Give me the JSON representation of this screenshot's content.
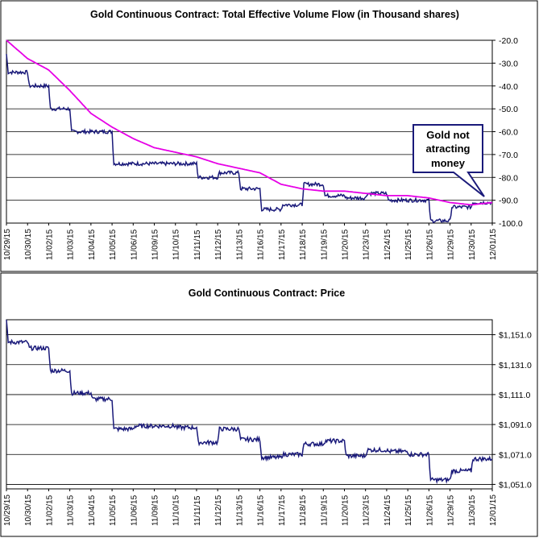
{
  "chart_data": [
    {
      "type": "line",
      "title": "Gold Continuous Contract: Total Effective Volume Flow (in Thousand shares)",
      "xlabel": "",
      "ylabel": "",
      "ylim": [
        -100,
        -20
      ],
      "yticks": [
        "-20.0",
        "-30.0",
        "-40.0",
        "-50.0",
        "-60.0",
        "-70.0",
        "-80.0",
        "-90.0",
        "-100.0"
      ],
      "categories": [
        "10/29/15",
        "10/30/15",
        "11/02/15",
        "11/03/15",
        "11/04/15",
        "11/05/15",
        "11/06/15",
        "11/09/15",
        "11/10/15",
        "11/11/15",
        "11/12/15",
        "11/13/15",
        "11/16/15",
        "11/17/15",
        "11/18/15",
        "11/19/15",
        "11/20/15",
        "11/23/15",
        "11/24/15",
        "11/25/15",
        "11/26/15",
        "11/29/15",
        "11/30/15",
        "12/01/15"
      ],
      "grid": true,
      "legend": "none",
      "annotation": "Gold not atracting money",
      "annotation_lines": [
        "Gold not",
        "atracting",
        "money"
      ],
      "series": [
        {
          "color": "#1a1a7a",
          "values": [
            -26,
            -34,
            -40,
            -50,
            -60,
            -60,
            -74,
            -74,
            -74,
            -74,
            -80,
            -78,
            -85,
            -94,
            -92,
            -83,
            -88,
            -89,
            -87,
            -90,
            -90,
            -99,
            -93,
            -91
          ]
        },
        {
          "color": "#e600e6",
          "values": [
            -20,
            -28,
            -33,
            -42,
            -52,
            -58,
            -63,
            -67,
            -69,
            -71,
            -74,
            -76,
            -78,
            -83,
            -85,
            -86,
            -86,
            -87,
            -88,
            -88,
            -89,
            -91,
            -92,
            -91
          ]
        }
      ],
      "colors": {
        "volume": "#1a1a7a",
        "average": "#e600e6"
      }
    },
    {
      "type": "line",
      "title": "Gold Continuous Contract: Price",
      "xlabel": "",
      "ylabel": "",
      "ylim": [
        1048,
        1161
      ],
      "yticks": [
        "$1,151.0",
        "$1,131.0",
        "$1,111.0",
        "$1,091.0",
        "$1,071.0",
        "$1,051.0"
      ],
      "categories": [
        "10/29/15",
        "10/30/15",
        "11/02/15",
        "11/03/15",
        "11/04/15",
        "11/05/15",
        "11/06/15",
        "11/09/15",
        "11/10/15",
        "11/11/15",
        "11/12/15",
        "11/13/15",
        "11/16/15",
        "11/17/15",
        "11/18/15",
        "11/19/15",
        "11/20/15",
        "11/23/15",
        "11/24/15",
        "11/25/15",
        "11/26/15",
        "11/29/15",
        "11/30/15",
        "12/01/15"
      ],
      "grid": true,
      "legend": "none",
      "series": [
        {
          "color": "#1a1a7a",
          "values": [
            1160,
            1146,
            1142,
            1127,
            1112,
            1108,
            1088,
            1090,
            1090,
            1089,
            1079,
            1088,
            1081,
            1069,
            1071,
            1078,
            1080,
            1070,
            1074,
            1073,
            1071,
            1054,
            1060,
            1068
          ]
        }
      ]
    }
  ]
}
